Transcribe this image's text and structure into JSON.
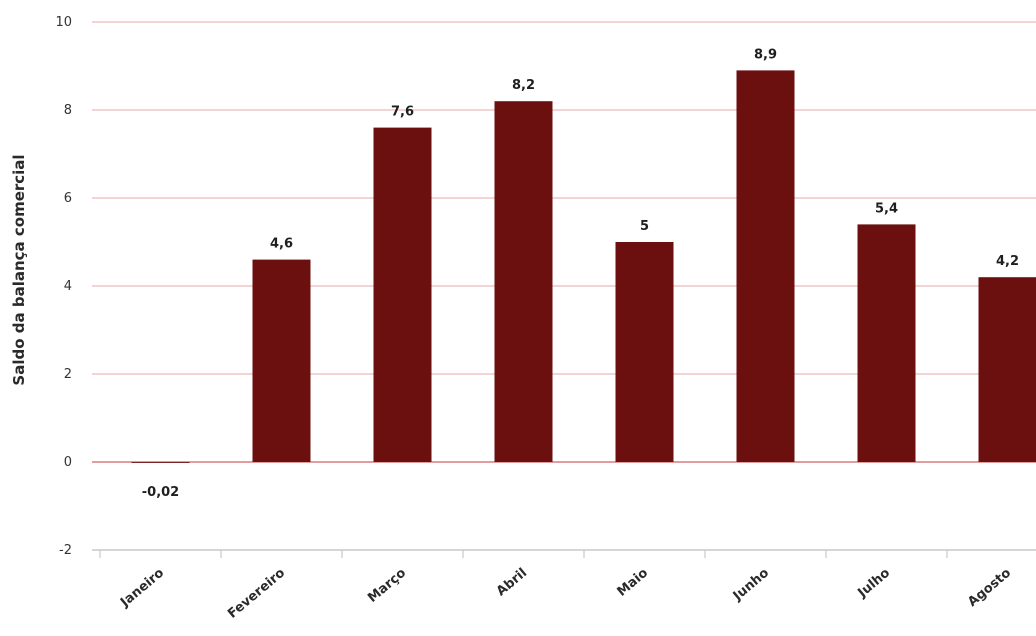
{
  "chart_data": {
    "type": "bar",
    "title": "",
    "xlabel": "",
    "ylabel": "Saldo da balança comercial",
    "categories": [
      "Janeiro",
      "Fevereiro",
      "Março",
      "Abril",
      "Maio",
      "Junho",
      "Julho",
      "Agosto"
    ],
    "values": [
      -0.02,
      4.6,
      7.6,
      8.2,
      5.0,
      8.9,
      5.4,
      4.2
    ],
    "data_labels": [
      "-0,02",
      "4,6",
      "7,6",
      "8,2",
      "5",
      "8,9",
      "5,4",
      "4,2"
    ],
    "yticks": [
      "-2",
      "0",
      "2",
      "4",
      "6",
      "8",
      "10"
    ],
    "ylim": [
      -2,
      10
    ],
    "grid": true,
    "legend": "none",
    "colors": {
      "bar": "#6b0f0f",
      "grid": "#e7a9a9",
      "baseline": "#d97f7f",
      "axis": "#c9c9c9"
    }
  }
}
